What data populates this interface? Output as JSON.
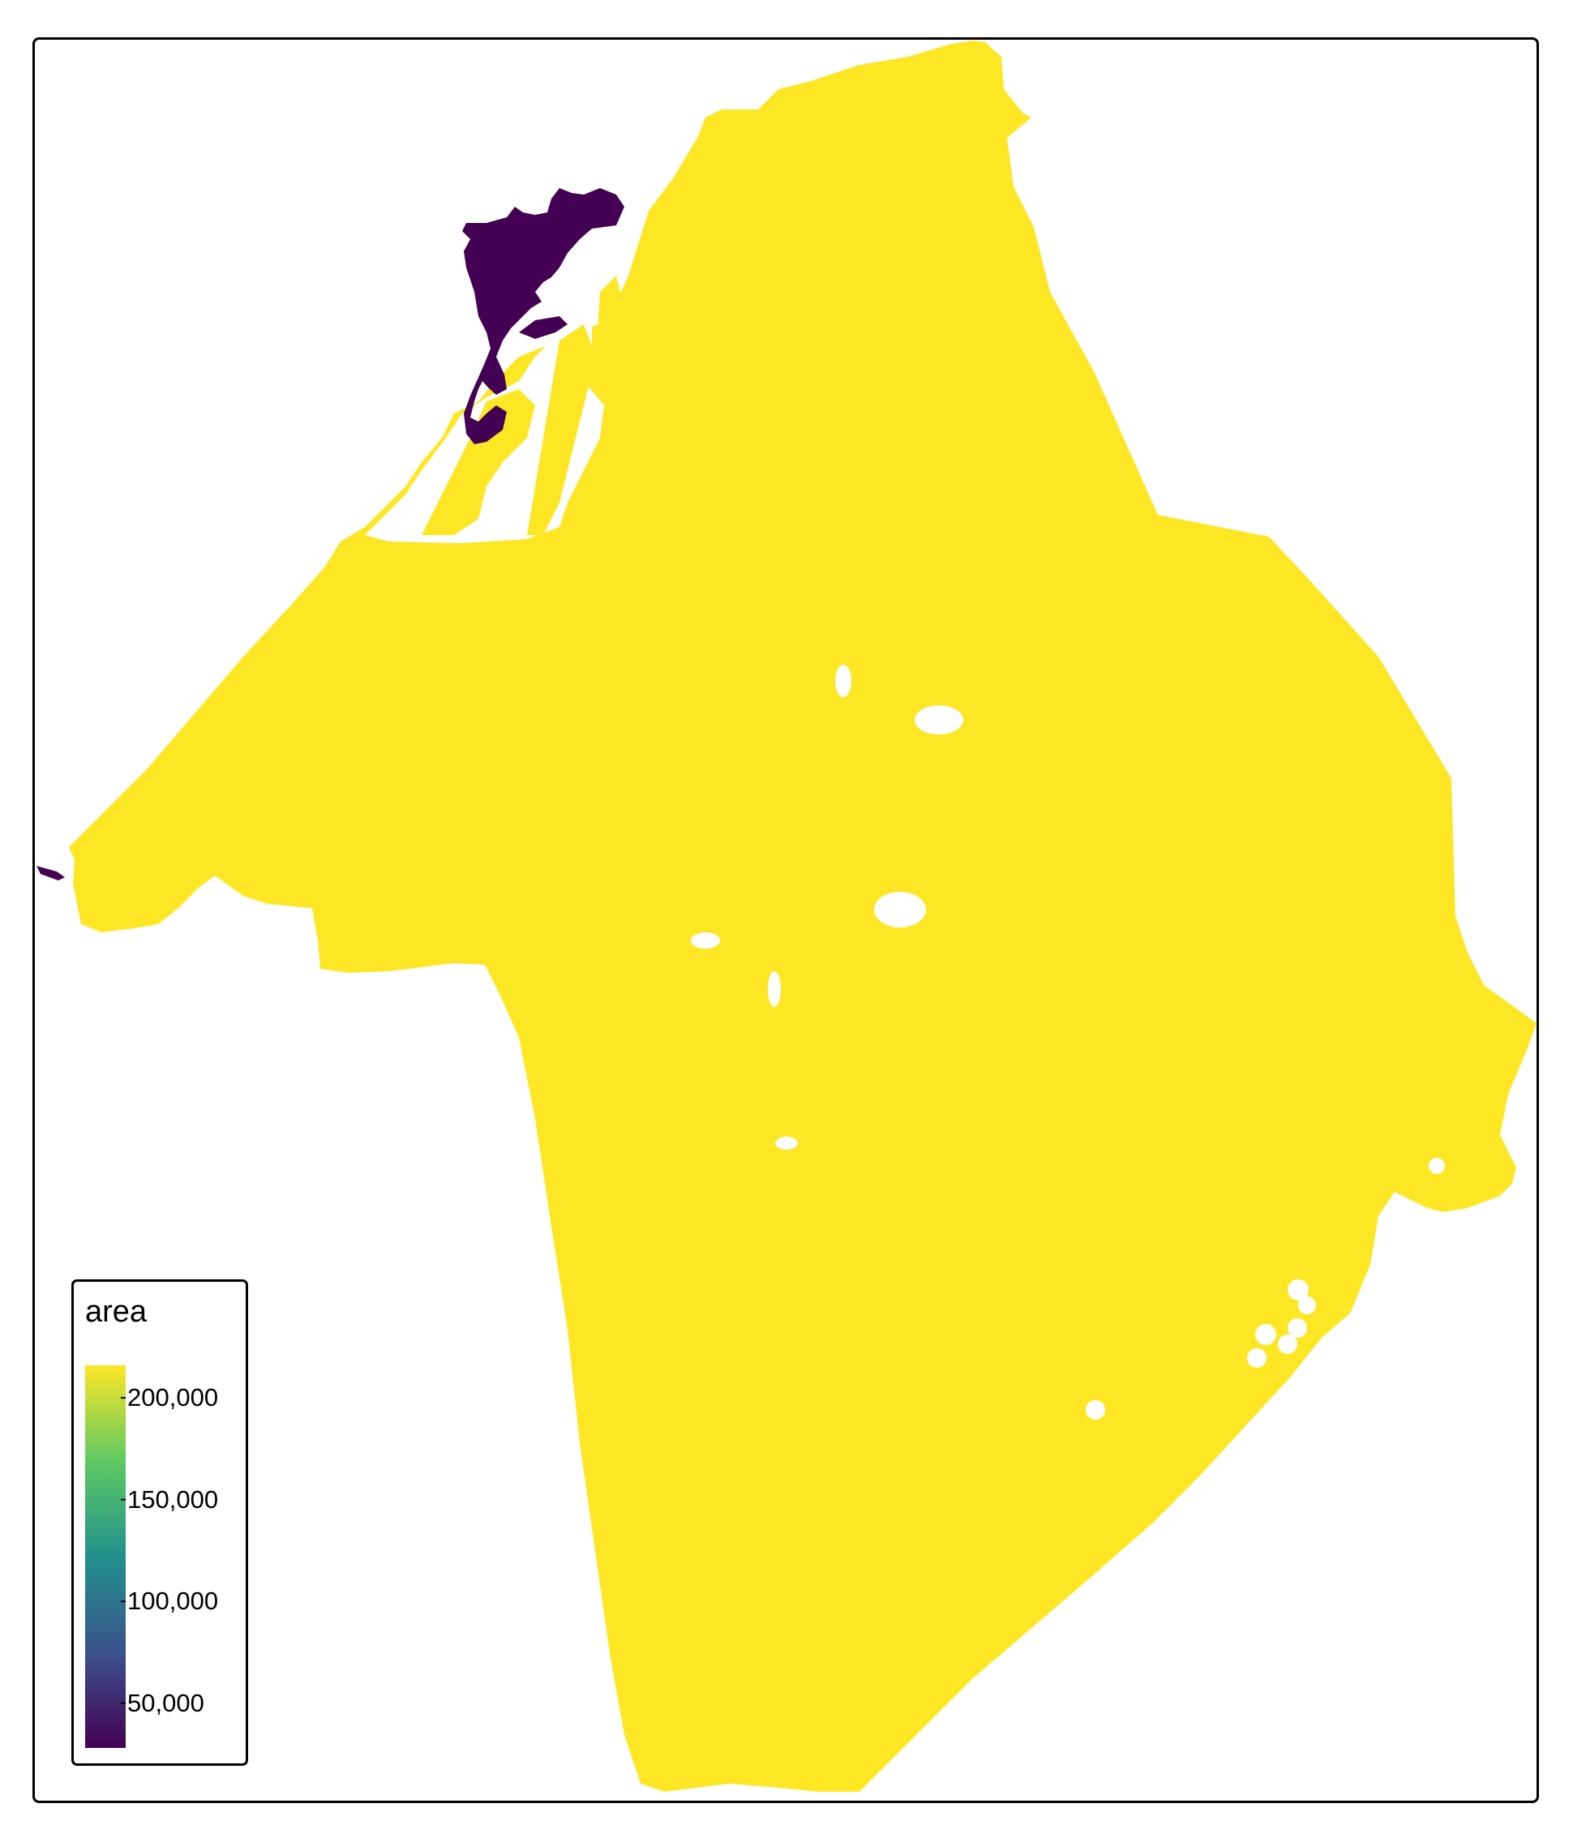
{
  "legend": {
    "title": "area",
    "ticks": [
      {
        "label": "200,000",
        "value": 200000
      },
      {
        "label": "150,000",
        "value": 150000
      },
      {
        "label": "100,000",
        "value": 100000
      },
      {
        "label": "50,000",
        "value": 50000
      }
    ],
    "range": [
      28000,
      216000
    ],
    "palette": [
      "#440154",
      "#3b528b",
      "#21918c",
      "#5ec962",
      "#fde725"
    ]
  },
  "colors": {
    "region_main": "#fde725",
    "region_small": "#440154",
    "frame": "#000000"
  }
}
